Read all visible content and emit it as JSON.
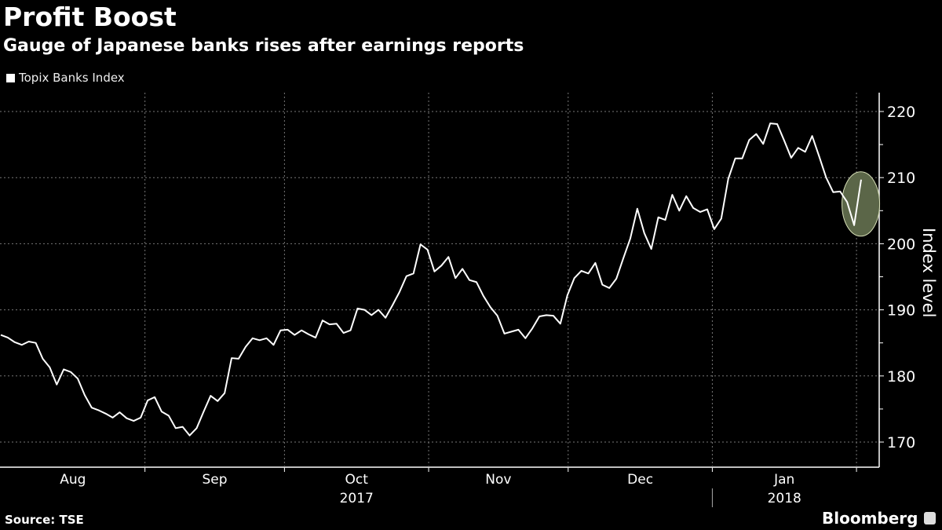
{
  "header": {
    "title": "Profit Boost",
    "subtitle": "Gauge of Japanese banks rises after earnings reports"
  },
  "footer": {
    "source": "Source: TSE",
    "brand": "Bloomberg"
  },
  "colors": {
    "background": "#000000",
    "line": "#ffffff",
    "highlight_fill": "#5b6648",
    "highlight_stroke": "#d8e0b8"
  },
  "chart_data": {
    "type": "line",
    "title": "Profit Boost",
    "subtitle": "Gauge of Japanese banks rises after earnings reports",
    "ylabel": "Index level",
    "xlabel": "",
    "ylim": [
      166,
      223
    ],
    "yticks": [
      170,
      180,
      190,
      200,
      210,
      220
    ],
    "yaxis_side": "right",
    "grid": true,
    "legend_placement": "top-left",
    "x_range": [
      "2017-08-01",
      "2018-02-02"
    ],
    "month_labels": [
      "Aug",
      "Sep",
      "Oct",
      "Nov",
      "Dec",
      "Jan"
    ],
    "month_starts": [
      "2017-08-01",
      "2017-09-01",
      "2017-10-01",
      "2017-11-01",
      "2017-12-01",
      "2018-01-01",
      "2018-02-01"
    ],
    "year_labels": [
      {
        "label": "2017"
      },
      {
        "label": "2018"
      }
    ],
    "highlight": "last two sessions (drop and rebound after earnings)",
    "series": [
      {
        "name": "Topix Banks Index",
        "values": [
          186.2,
          185.8,
          185.1,
          184.7,
          185.2,
          185.0,
          182.6,
          181.3,
          178.7,
          181.0,
          180.6,
          179.6,
          177.1,
          175.2,
          174.8,
          174.3,
          173.7,
          174.5,
          173.6,
          173.2,
          173.7,
          176.3,
          176.8,
          174.6,
          174.0,
          172.1,
          172.3,
          171.0,
          172.1,
          174.6,
          177.0,
          176.2,
          177.4,
          182.7,
          182.6,
          184.4,
          185.7,
          185.4,
          185.7,
          184.7,
          186.9,
          187.0,
          186.2,
          186.9,
          186.3,
          185.8,
          188.4,
          187.8,
          187.9,
          186.5,
          186.9,
          190.2,
          190.0,
          189.2,
          190.0,
          188.8,
          190.7,
          192.7,
          195.1,
          195.5,
          199.9,
          199.1,
          195.8,
          196.7,
          198.0,
          194.8,
          196.2,
          194.5,
          194.2,
          192.1,
          190.4,
          189.1,
          186.4,
          186.7,
          187.0,
          185.7,
          187.2,
          189.0,
          189.2,
          189.1,
          187.9,
          192.2,
          194.8,
          195.9,
          195.5,
          197.1,
          193.8,
          193.3,
          194.7,
          197.8,
          200.8,
          205.3,
          201.6,
          199.2,
          204.0,
          203.6,
          207.4,
          205.0,
          207.2,
          205.4,
          204.8,
          205.2,
          202.2,
          203.8,
          209.8,
          212.9,
          212.9,
          215.7,
          216.6,
          215.1,
          218.2,
          218.1,
          215.6,
          213.0,
          214.5,
          213.9,
          216.3,
          213.2,
          210.0,
          207.8,
          207.9,
          206.3,
          202.8,
          209.7
        ]
      }
    ]
  }
}
